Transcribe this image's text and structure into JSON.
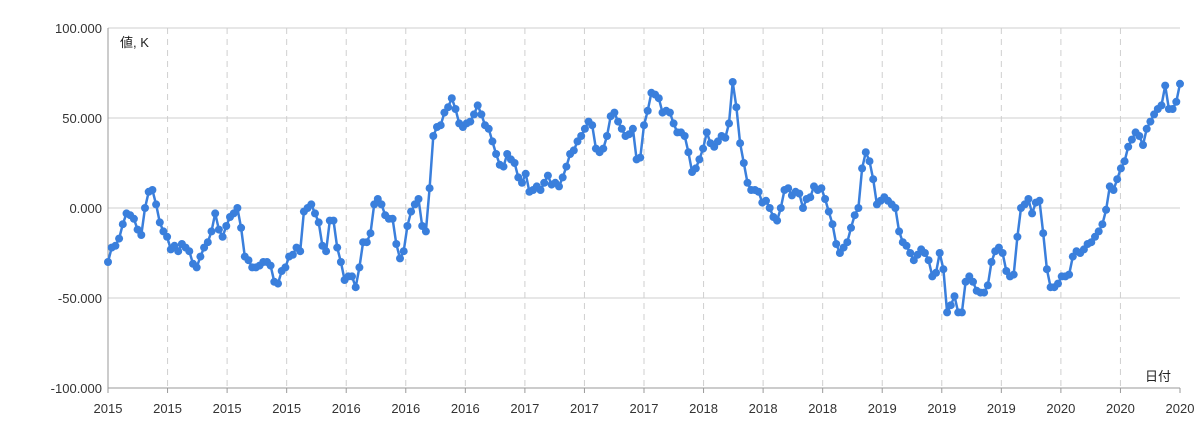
{
  "chart_data": {
    "type": "line",
    "y_axis_label": "値, K",
    "x_axis_label": "日付",
    "ylim": [
      -100,
      100
    ],
    "y_ticks": [
      {
        "value": 100,
        "label": "100.000"
      },
      {
        "value": 50,
        "label": "50.000"
      },
      {
        "value": 0,
        "label": "0.000"
      },
      {
        "value": -50,
        "label": "-50.000"
      },
      {
        "value": -100,
        "label": "-100.000"
      }
    ],
    "x_ticks": [
      "2015",
      "2015",
      "2015",
      "2015",
      "2016",
      "2016",
      "2016",
      "2017",
      "2017",
      "2017",
      "2018",
      "2018",
      "2018",
      "2019",
      "2019",
      "2019",
      "2020",
      "2020",
      "2020"
    ],
    "grid": true,
    "line_color": "#3a7fdc",
    "values": [
      -30,
      -22,
      -21,
      -17,
      -9,
      -3,
      -4,
      -6,
      -12,
      -15,
      0,
      9,
      10,
      2,
      -8,
      -13,
      -16,
      -23,
      -21,
      -24,
      -20,
      -22,
      -24,
      -31,
      -33,
      -27,
      -22,
      -19,
      -13,
      -3,
      -12,
      -16,
      -10,
      -5,
      -3,
      0,
      -11,
      -27,
      -29,
      -33,
      -33,
      -32,
      -30,
      -30,
      -32,
      -41,
      -42,
      -35,
      -33,
      -27,
      -26,
      -22,
      -24,
      -2,
      0,
      2,
      -3,
      -8,
      -21,
      -24,
      -7,
      -7,
      -22,
      -30,
      -40,
      -38,
      -38,
      -44,
      -33,
      -19,
      -19,
      -14,
      2,
      5,
      2,
      -4,
      -6,
      -6,
      -20,
      -28,
      -24,
      -10,
      -2,
      2,
      5,
      -10,
      -13,
      11,
      40,
      45,
      46,
      53,
      56,
      61,
      55,
      47,
      45,
      47,
      48,
      52,
      57,
      52,
      46,
      44,
      37,
      30,
      24,
      23,
      30,
      27,
      25,
      17,
      14,
      19,
      9,
      10,
      12,
      10,
      14,
      18,
      13,
      14,
      12,
      17,
      23,
      30,
      32,
      37,
      40,
      44,
      48,
      46,
      33,
      31,
      33,
      40,
      51,
      53,
      48,
      44,
      40,
      41,
      44,
      27,
      28,
      46,
      54,
      64,
      63,
      61,
      53,
      54,
      53,
      47,
      42,
      42,
      40,
      31,
      20,
      22,
      27,
      33,
      42,
      36,
      34,
      37,
      40,
      39,
      47,
      70,
      56,
      36,
      25,
      14,
      10,
      10,
      9,
      3,
      4,
      0,
      -5,
      -7,
      0,
      10,
      11,
      7,
      9,
      8,
      0,
      5,
      6,
      12,
      10,
      11,
      5,
      -2,
      -9,
      -20,
      -25,
      -22,
      -19,
      -11,
      -4,
      0,
      22,
      31,
      26,
      16,
      2,
      4,
      6,
      4,
      2,
      0,
      -13,
      -19,
      -21,
      -25,
      -29,
      -26,
      -23,
      -25,
      -29,
      -38,
      -36,
      -25,
      -34,
      -58,
      -54,
      -49,
      -58,
      -58,
      -41,
      -38,
      -41,
      -46,
      -47,
      -47,
      -43,
      -30,
      -24,
      -22,
      -25,
      -35,
      -38,
      -37,
      -16,
      0,
      2,
      5,
      -3,
      3,
      4,
      -14,
      -34,
      -44,
      -44,
      -42,
      -38,
      -38,
      -37,
      -27,
      -24,
      -25,
      -23,
      -20,
      -19,
      -16,
      -13,
      -9,
      -1,
      12,
      10,
      16,
      22,
      26,
      34,
      38,
      42,
      40,
      35,
      44,
      48,
      52,
      55,
      57,
      68,
      55,
      55,
      59,
      69
    ]
  }
}
